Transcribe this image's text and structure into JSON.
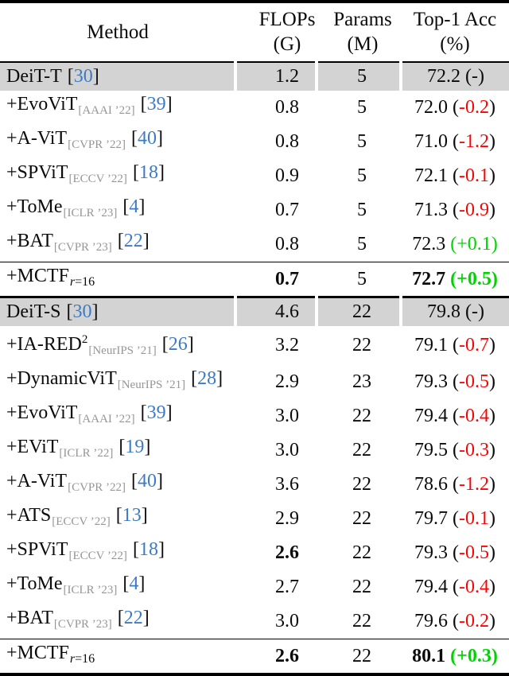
{
  "header": {
    "method": "Method",
    "flops": "FLOPs",
    "flops_unit": "(G)",
    "params": "Params",
    "params_unit": "(M)",
    "acc": "Top-1 Acc",
    "acc_unit": "(%)"
  },
  "punct": {
    "bracket_open": "[",
    "bracket_close": "]",
    "paren_open": "(",
    "paren_close": ")"
  },
  "colors": {
    "citation_blue": "#3c7bc4",
    "negative_red": "#f60505",
    "positive_green": "#00d400",
    "venue_gray": "#969696",
    "highlight_row_gray": "#d3d3d3"
  },
  "rows": [
    {
      "name": "DeiT-T",
      "cite": "30",
      "flops": "1.2",
      "params": "5",
      "acc": "72.2",
      "delta": "-"
    },
    {
      "name": "+EvoViT",
      "venue": "[AAAI ’22]",
      "cite": "39",
      "flops": "0.8",
      "params": "5",
      "acc": "72.0",
      "delta": "-0.2"
    },
    {
      "name": "+A-ViT",
      "venue": "[CVPR ’22]",
      "cite": "40",
      "flops": "0.8",
      "params": "5",
      "acc": "71.0",
      "delta": "-1.2"
    },
    {
      "name": "+SPViT",
      "venue": "[ECCV ’22]",
      "cite": "18",
      "flops": "0.9",
      "params": "5",
      "acc": "72.1",
      "delta": "-0.1"
    },
    {
      "name": "+ToMe",
      "venue": "[ICLR ’23]",
      "cite": "4",
      "flops": "0.7",
      "params": "5",
      "acc": "71.3",
      "delta": "-0.9"
    },
    {
      "name": "+BAT",
      "venue": "[CVPR ’23]",
      "cite": "22",
      "flops": "0.8",
      "params": "5",
      "acc": "72.3",
      "delta": "+0.1"
    },
    {
      "name": "+MCTF",
      "sub_var": "r",
      "sub_rest": "=16",
      "flops": "0.7",
      "params": "5",
      "acc": "72.7",
      "delta": "+0.5"
    },
    {
      "name": "DeiT-S",
      "cite": "30",
      "flops": "4.6",
      "params": "22",
      "acc": "79.8",
      "delta": "-"
    },
    {
      "name": "+IA-RED",
      "sup": "2",
      "venue": "[NeurIPS ’21]",
      "cite": "26",
      "flops": "3.2",
      "params": "22",
      "acc": "79.1",
      "delta": "-0.7"
    },
    {
      "name": "+DynamicViT",
      "venue": "[NeurIPS ’21]",
      "cite": "28",
      "flops": "2.9",
      "params": "23",
      "acc": "79.3",
      "delta": "-0.5"
    },
    {
      "name": "+EvoViT",
      "venue": "[AAAI ’22]",
      "cite": "39",
      "flops": "3.0",
      "params": "22",
      "acc": "79.4",
      "delta": "-0.4"
    },
    {
      "name": "+EViT",
      "venue": "[ICLR ’22]",
      "cite": "19",
      "flops": "3.0",
      "params": "22",
      "acc": "79.5",
      "delta": "-0.3"
    },
    {
      "name": "+A-ViT",
      "venue": "[CVPR ’22]",
      "cite": "40",
      "flops": "3.6",
      "params": "22",
      "acc": "78.6",
      "delta": "-1.2"
    },
    {
      "name": "+ATS",
      "venue": "[ECCV ’22]",
      "cite": "13",
      "flops": "2.9",
      "params": "22",
      "acc": "79.7",
      "delta": "-0.1"
    },
    {
      "name": "+SPViT",
      "venue": "[ECCV ’22]",
      "cite": "18",
      "flops": "2.6",
      "params": "22",
      "acc": "79.3",
      "delta": "-0.5"
    },
    {
      "name": "+ToMe",
      "venue": "[ICLR ’23]",
      "cite": "4",
      "flops": "2.7",
      "params": "22",
      "acc": "79.4",
      "delta": "-0.4"
    },
    {
      "name": "+BAT",
      "venue": "[CVPR ’23]",
      "cite": "22",
      "flops": "3.0",
      "params": "22",
      "acc": "79.6",
      "delta": "-0.2"
    },
    {
      "name": "+MCTF",
      "sub_var": "r",
      "sub_rest": "=16",
      "flops": "2.6",
      "params": "22",
      "acc": "80.1",
      "delta": "+0.3"
    }
  ]
}
